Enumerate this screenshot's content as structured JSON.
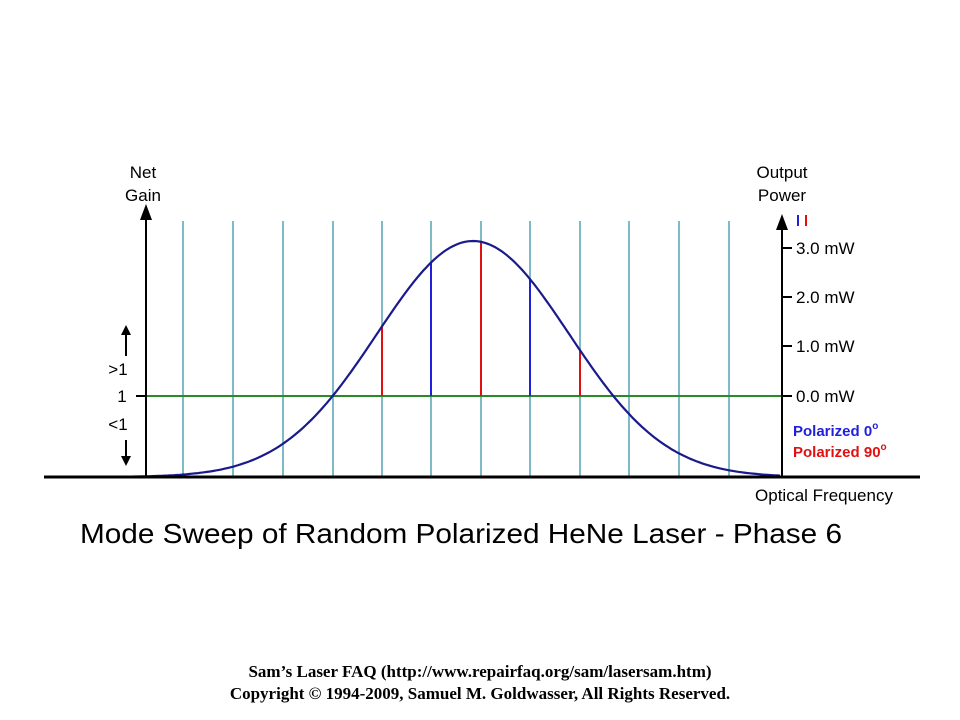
{
  "diagram": {
    "title": "Mode Sweep of Random Polarized HeNe Laser - Phase 6",
    "left_axis": {
      "label_line1": "Net",
      "label_line2": "Gain"
    },
    "right_axis": {
      "label_line1": "Output",
      "label_line2": "Power",
      "ticks": [
        "3.0 mW",
        "2.0 mW",
        "1.0 mW",
        "0.0 mW"
      ]
    },
    "x_axis_label": "Optical Frequency",
    "gain_labels": {
      "greater": ">1",
      "unity": "1",
      "less": "<1"
    },
    "legend": {
      "blue": {
        "text": "Polarized 0",
        "sup": "o",
        "color": "#1f1fdc"
      },
      "red": {
        "text": "Polarized 90",
        "sup": "o",
        "color": "#e01010"
      }
    },
    "colors": {
      "gain_curve": "#1a1a8c",
      "mode_lines": "#7fbac8",
      "threshold_line": "#2a8a2a",
      "axis": "#000000"
    }
  },
  "footer": {
    "line1": "Sam’s Laser FAQ (http://www.repairfaq.org/sam/lasersam.htm)",
    "line2": "Copyright © 1994-2009, Samuel M. Goldwasser, All Rights Reserved."
  }
}
